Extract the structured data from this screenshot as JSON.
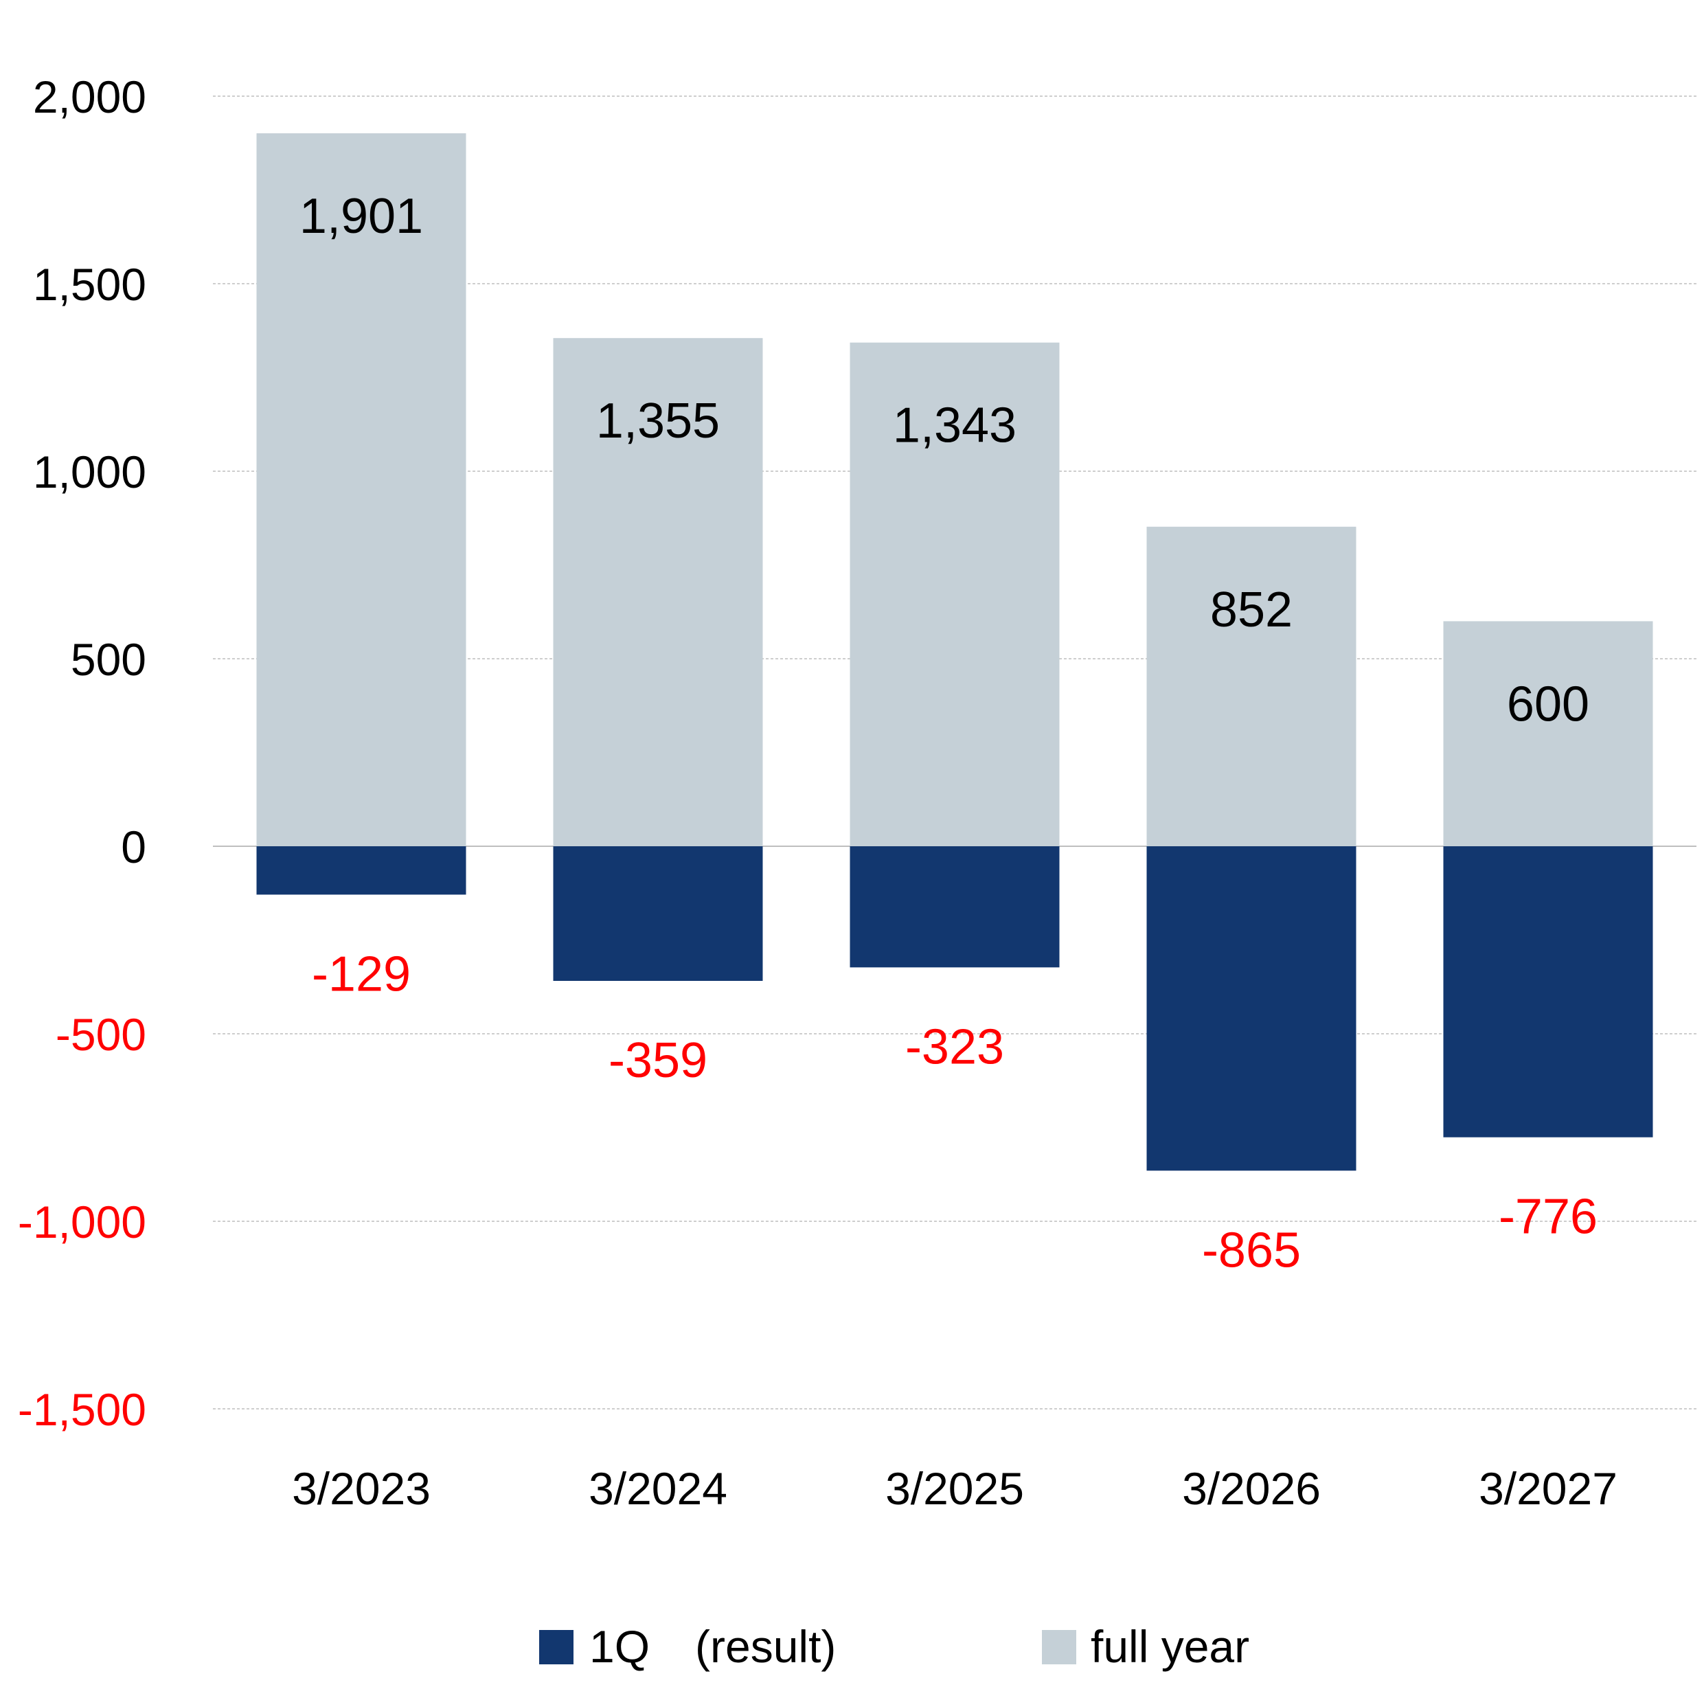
{
  "chart_data": {
    "type": "bar",
    "categories": [
      "3/2023",
      "3/2024",
      "3/2025",
      "3/2026",
      "3/2027"
    ],
    "series": [
      {
        "name": "1Q (result)",
        "legend_label": "1Q　(result)",
        "values": [
          -129,
          -359,
          -323,
          -865,
          -776
        ],
        "color": "#12376f",
        "label_color": "#ff0000"
      },
      {
        "name": "full year",
        "legend_label": "full year",
        "values": [
          1901,
          1355,
          1343,
          852,
          600
        ],
        "color": "#c5d0d7",
        "label_color": "#000000"
      }
    ],
    "value_labels": {
      "full_year": [
        "1,901",
        "1,355",
        "1,343",
        "852",
        "600"
      ],
      "q1": [
        "-129",
        "-359",
        "-323",
        "-865",
        "-776"
      ]
    },
    "y_ticks": [
      2000,
      1500,
      1000,
      500,
      0,
      -500,
      -1000,
      -1500
    ],
    "y_tick_labels": [
      "2,000",
      "1,500",
      "1,000",
      "500",
      "0",
      "-500",
      "-1,000",
      "-1,500"
    ],
    "negative_tick_color": "#ff0000",
    "ylim": [
      -1500,
      2000
    ],
    "grid": true,
    "legend_position": "bottom",
    "title": "",
    "xlabel": "",
    "ylabel": ""
  }
}
